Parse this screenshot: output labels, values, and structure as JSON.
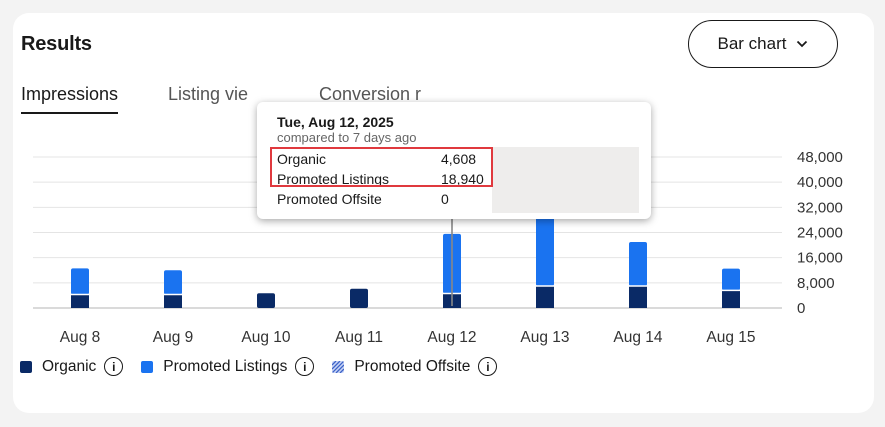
{
  "header": {
    "title": "Results",
    "chart_type_label": "Bar chart",
    "chart_type_icon": "chevron-down-icon"
  },
  "tabs": [
    {
      "label": "Impressions",
      "active": true
    },
    {
      "label": "Listing vie",
      "active": false
    },
    {
      "label": "Conversion r",
      "active": false
    }
  ],
  "legend": [
    {
      "label": "Organic",
      "color": "#0a2a66",
      "icon": "info-icon"
    },
    {
      "label": "Promoted Listings",
      "color": "#1a73f0",
      "icon": "info-icon"
    },
    {
      "label": "Promoted Offsite",
      "color": "#8fa9e8",
      "icon": "info-icon"
    }
  ],
  "tooltip": {
    "date": "Tue, Aug 12, 2025",
    "subtitle": "compared to 7 days ago",
    "rows": [
      {
        "label": "Organic",
        "value": "4,608"
      },
      {
        "label": "Promoted Listings",
        "value": "18,940"
      },
      {
        "label": "Promoted Offsite",
        "value": "0"
      }
    ]
  },
  "chart_data": {
    "type": "bar",
    "stacked": true,
    "categories": [
      "Aug 8",
      "Aug 9",
      "Aug 10",
      "Aug 11",
      "Aug 12",
      "Aug 13",
      "Aug 14",
      "Aug 15"
    ],
    "series": [
      {
        "name": "Organic",
        "values": [
          4300,
          4300,
          4700,
          6100,
          4608,
          7000,
          7000,
          5600
        ]
      },
      {
        "name": "Promoted Listings",
        "values": [
          8300,
          7700,
          0,
          0,
          18940,
          22000,
          14000,
          6900
        ]
      },
      {
        "name": "Promoted Offsite",
        "values": [
          0,
          0,
          0,
          0,
          0,
          0,
          0,
          0
        ]
      }
    ],
    "y_ticks": [
      "0",
      "8,000",
      "16,000",
      "24,000",
      "32,000",
      "40,000",
      "48,000"
    ],
    "ylim": [
      0,
      48000
    ],
    "grid": true,
    "legend_position": "bottom-left"
  }
}
